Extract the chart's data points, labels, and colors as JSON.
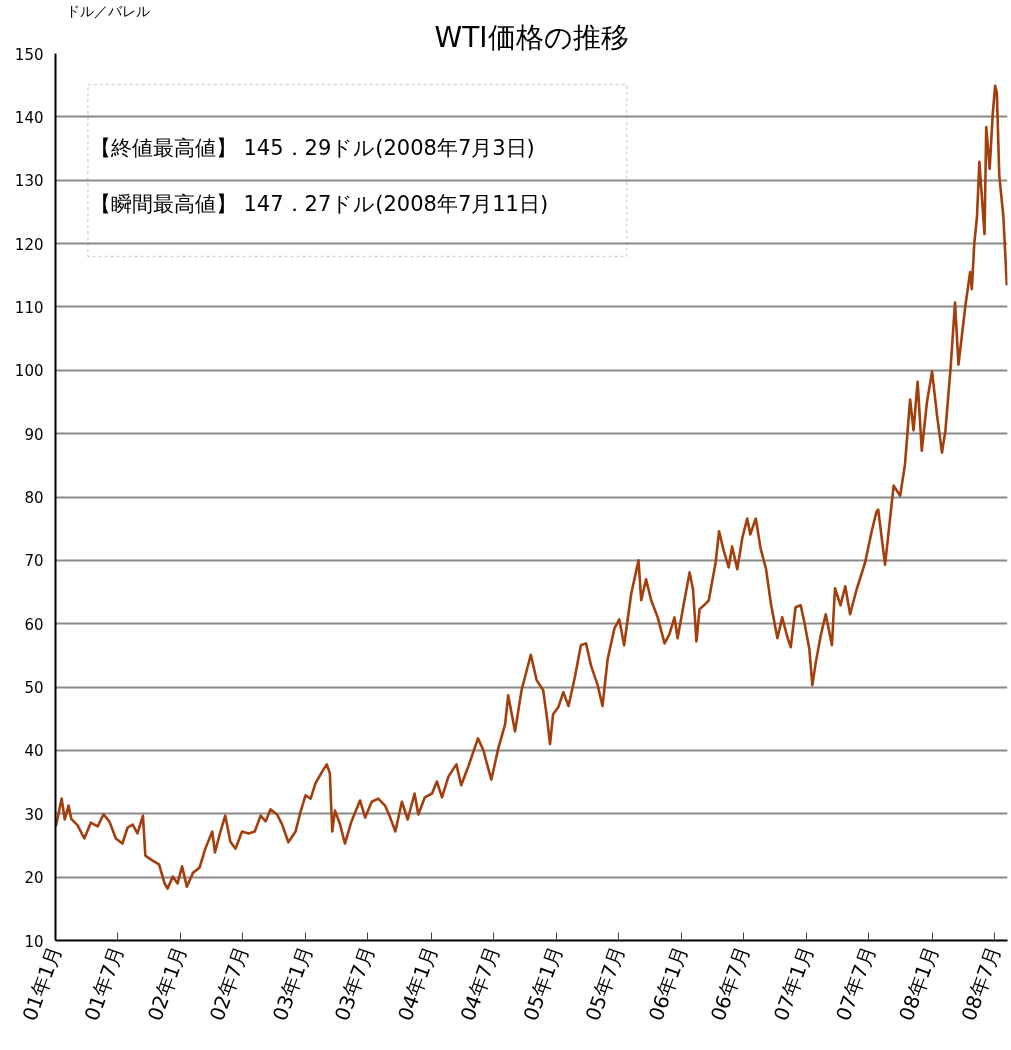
{
  "chart_data": {
    "type": "line",
    "title": "WTI価格の推移",
    "ylabel": "ドル／バレル",
    "annotations": [
      "【終値最高値】 145．29ドル(2008年7月3日)",
      "【瞬間最高値】 147．27ドル(2008年7月11日)"
    ],
    "x": [
      "2001-01-02",
      "2001-01-19",
      "2001-01-28",
      "2001-02-08",
      "2001-02-16",
      "2001-03-06",
      "2001-03-26",
      "2001-04-14",
      "2001-05-04",
      "2001-05-21",
      "2001-06-07",
      "2001-06-26",
      "2001-07-15",
      "2001-07-30",
      "2001-08-14",
      "2001-08-28",
      "2001-09-13",
      "2001-09-20",
      "2001-10-11",
      "2001-10-30",
      "2001-11-15",
      "2001-11-24",
      "2001-12-09",
      "2001-12-23",
      "2002-01-05",
      "2002-01-19",
      "2002-02-06",
      "2002-02-25",
      "2002-03-14",
      "2002-04-03",
      "2002-04-11",
      "2002-04-27",
      "2002-05-11",
      "2002-05-26",
      "2002-06-10",
      "2002-06-29",
      "2002-07-18",
      "2002-08-05",
      "2002-08-22",
      "2002-09-06",
      "2002-09-20",
      "2002-10-09",
      "2002-10-24",
      "2002-11-11",
      "2002-12-02",
      "2002-12-16",
      "2002-12-31",
      "2003-01-15",
      "2003-01-29",
      "2003-02-18",
      "2003-03-03",
      "2003-03-12",
      "2003-03-19",
      "2003-03-27",
      "2003-04-11",
      "2003-04-25",
      "2003-05-14",
      "2003-06-08",
      "2003-06-23",
      "2003-07-12",
      "2003-07-31",
      "2003-08-20",
      "2003-09-04",
      "2003-09-19",
      "2003-10-08",
      "2003-10-25",
      "2003-11-14",
      "2003-11-25",
      "2003-12-14",
      "2004-01-04",
      "2004-01-18",
      "2004-02-02",
      "2004-02-21",
      "2004-03-15",
      "2004-03-29",
      "2004-04-19",
      "2004-05-17",
      "2004-06-02",
      "2004-06-11",
      "2004-06-25",
      "2004-07-15",
      "2004-08-04",
      "2004-08-13",
      "2004-09-02",
      "2004-09-21",
      "2004-10-18",
      "2004-11-04",
      "2004-11-23",
      "2004-12-03",
      "2004-12-13",
      "2004-12-22",
      "2005-01-06",
      "2005-01-21",
      "2005-02-05",
      "2005-02-24",
      "2005-03-13",
      "2005-03-28",
      "2005-04-12",
      "2005-05-01",
      "2005-05-15",
      "2005-05-30",
      "2005-06-19",
      "2005-07-03",
      "2005-07-17",
      "2005-08-07",
      "2005-08-16",
      "2005-08-28",
      "2005-09-05",
      "2005-09-19",
      "2005-10-04",
      "2005-10-23",
      "2005-11-12",
      "2005-11-26",
      "2005-12-11",
      "2005-12-20",
      "2006-01-09",
      "2006-01-24",
      "2006-02-03",
      "2006-02-13",
      "2006-02-22",
      "2006-03-07",
      "2006-03-21",
      "2006-04-10",
      "2006-04-20",
      "2006-05-04",
      "2006-05-18",
      "2006-05-28",
      "2006-06-12",
      "2006-06-27",
      "2006-07-11",
      "2006-07-20",
      "2006-08-05",
      "2006-08-19",
      "2006-09-04",
      "2006-09-18",
      "2006-10-07",
      "2006-10-21",
      "2006-11-06",
      "2006-11-15",
      "2006-11-29",
      "2006-12-14",
      "2006-12-24",
      "2007-01-08",
      "2007-01-17",
      "2007-01-27",
      "2007-02-11",
      "2007-02-25",
      "2007-03-15",
      "2007-03-24",
      "2007-04-09",
      "2007-04-23",
      "2007-05-07",
      "2007-05-26",
      "2007-06-20",
      "2007-07-09",
      "2007-07-23",
      "2007-07-28",
      "2007-08-17",
      "2007-09-11",
      "2007-09-30",
      "2007-10-14",
      "2007-10-29",
      "2007-11-08",
      "2007-11-20",
      "2007-12-02",
      "2007-12-17",
      "2008-01-01",
      "2008-01-16",
      "2008-01-30",
      "2008-02-09",
      "2008-02-24",
      "2008-03-08",
      "2008-03-18",
      "2008-04-07",
      "2008-04-21",
      "2008-04-26",
      "2008-05-03",
      "2008-05-11",
      "2008-05-18",
      "2008-06-02",
      "2008-06-07",
      "2008-06-17",
      "2008-06-26",
      "2008-07-03",
      "2008-07-08",
      "2008-07-15",
      "2008-07-27",
      "2008-08-06"
    ],
    "series": [
      {
        "color": "#a33e0d",
        "values": [
          28.0,
          32.4,
          29.1,
          31.3,
          29.2,
          28.2,
          26.1,
          28.6,
          28.0,
          29.9,
          28.8,
          26.1,
          25.3,
          27.8,
          28.3,
          26.9,
          29.7,
          23.4,
          22.6,
          22.0,
          19.0,
          18.2,
          20.1,
          19.0,
          21.7,
          18.5,
          20.7,
          21.5,
          24.5,
          27.2,
          23.9,
          27.2,
          29.7,
          25.6,
          24.5,
          27.2,
          26.9,
          27.2,
          29.7,
          28.8,
          30.7,
          29.9,
          28.3,
          25.5,
          27.2,
          30.2,
          32.9,
          32.4,
          34.8,
          36.7,
          37.8,
          36.4,
          27.2,
          30.5,
          28.3,
          25.3,
          28.8,
          32.1,
          29.4,
          31.9,
          32.4,
          31.3,
          29.4,
          27.2,
          31.9,
          29.1,
          33.2,
          29.9,
          32.6,
          33.2,
          35.1,
          32.6,
          35.9,
          37.8,
          34.5,
          37.5,
          41.9,
          40.0,
          38.1,
          35.4,
          40.3,
          44.1,
          48.7,
          43.0,
          49.5,
          55.1,
          51.1,
          49.5,
          45.7,
          41.0,
          45.7,
          46.8,
          49.2,
          47.0,
          51.7,
          56.6,
          56.9,
          53.3,
          50.3,
          47.0,
          54.4,
          59.3,
          60.7,
          56.6,
          64.8,
          67.0,
          70.0,
          63.7,
          67.0,
          63.7,
          61.0,
          56.9,
          58.3,
          61.0,
          57.7,
          63.7,
          68.1,
          65.4,
          57.2,
          62.3,
          62.9,
          63.7,
          69.7,
          74.6,
          71.4,
          68.9,
          72.2,
          68.6,
          73.6,
          76.6,
          74.1,
          76.6,
          71.9,
          68.6,
          63.2,
          57.7,
          61.0,
          57.7,
          56.3,
          62.6,
          62.9,
          60.4,
          56.1,
          50.3,
          53.9,
          58.3,
          61.5,
          56.6,
          65.6,
          62.9,
          65.9,
          61.5,
          65.4,
          69.7,
          74.6,
          77.7,
          78.0,
          69.3,
          81.8,
          80.2,
          85.1,
          95.4,
          90.5,
          98.2,
          87.3,
          94.9,
          99.8,
          92.7,
          87.0,
          90.5,
          100.3,
          110.7,
          100.9,
          110.1,
          115.5,
          112.8,
          119.9,
          124.2,
          132.9,
          121.5,
          138.4,
          131.8,
          140.5,
          144.9,
          143.8,
          130.8,
          124.2,
          113.4
        ]
      }
    ],
    "xlim": [
      "2001-01-01",
      "2008-08-08"
    ],
    "xticks": [
      {
        "value": "2001-01",
        "label": "01年1月"
      },
      {
        "value": "2001-07",
        "label": "01年7月"
      },
      {
        "value": "2002-01",
        "label": "02年1月"
      },
      {
        "value": "2002-07",
        "label": "02年7月"
      },
      {
        "value": "2003-01",
        "label": "03年1月"
      },
      {
        "value": "2003-07",
        "label": "03年7月"
      },
      {
        "value": "2004-01",
        "label": "04年1月"
      },
      {
        "value": "2004-07",
        "label": "04年7月"
      },
      {
        "value": "2005-01",
        "label": "05年1月"
      },
      {
        "value": "2005-07",
        "label": "05年7月"
      },
      {
        "value": "2006-01",
        "label": "06年1月"
      },
      {
        "value": "2006-07",
        "label": "06年7月"
      },
      {
        "value": "2007-01",
        "label": "07年1月"
      },
      {
        "value": "2007-07",
        "label": "07年7月"
      },
      {
        "value": "2008-01",
        "label": "08年1月"
      },
      {
        "value": "2008-07",
        "label": "08年7月"
      }
    ],
    "ylim": [
      10,
      150
    ],
    "yticks": [
      10,
      20,
      30,
      40,
      50,
      60,
      70,
      80,
      90,
      100,
      110,
      120,
      130,
      140,
      150
    ],
    "grid": "y",
    "line_style": "solid"
  }
}
